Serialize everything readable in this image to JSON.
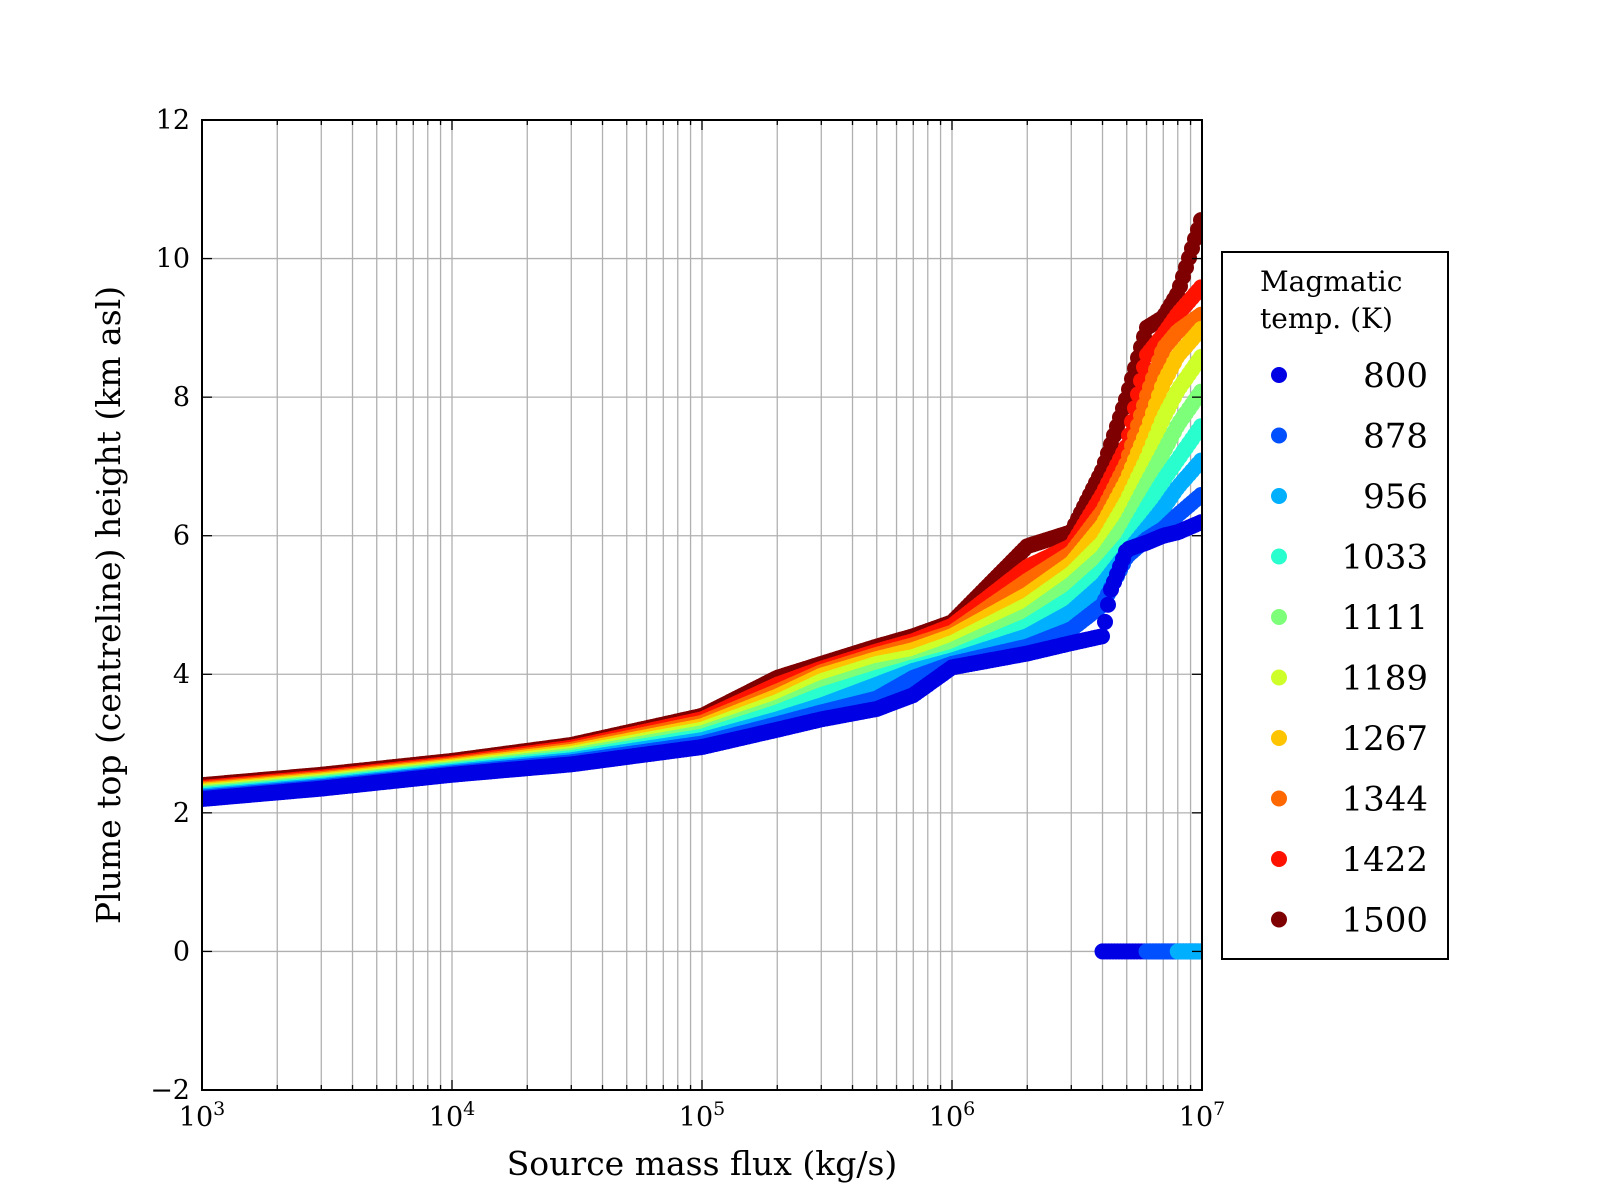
{
  "chart_data": {
    "type": "scatter",
    "title": "",
    "xlabel": "Source mass flux (kg/s)",
    "ylabel": "Plume top (centreline) height (km asl)",
    "xscale": "log",
    "xlim": [
      1000,
      10000000
    ],
    "ylim": [
      -2,
      12
    ],
    "grid": true,
    "x_tick_labels": [
      {
        "value": 1000,
        "base": "10",
        "exp": "3"
      },
      {
        "value": 10000,
        "base": "10",
        "exp": "4"
      },
      {
        "value": 100000,
        "base": "10",
        "exp": "5"
      },
      {
        "value": 1000000,
        "base": "10",
        "exp": "6"
      },
      {
        "value": 10000000,
        "base": "10",
        "exp": "7"
      }
    ],
    "y_tick_labels": [
      {
        "value": -2,
        "label": "−2"
      },
      {
        "value": 0,
        "label": "0"
      },
      {
        "value": 2,
        "label": "2"
      },
      {
        "value": 4,
        "label": "4"
      },
      {
        "value": 6,
        "label": "6"
      },
      {
        "value": 8,
        "label": "8"
      },
      {
        "value": 10,
        "label": "10"
      },
      {
        "value": 12,
        "label": "12"
      }
    ],
    "legend": {
      "title_lines": [
        "Magmatic",
        "temp. (K)"
      ],
      "placement": "outside right"
    },
    "series": [
      {
        "name": "800",
        "color": "#0000e5",
        "points": [
          [
            1000,
            2.2
          ],
          [
            3000,
            2.35
          ],
          [
            10000,
            2.55
          ],
          [
            30000,
            2.7
          ],
          [
            100000,
            2.95
          ],
          [
            200000,
            3.2
          ],
          [
            300000,
            3.35
          ],
          [
            500000,
            3.5
          ],
          [
            700000,
            3.7
          ],
          [
            1000000,
            4.1
          ],
          [
            2000000,
            4.3
          ],
          [
            3000000,
            4.45
          ],
          [
            4000000,
            4.55
          ],
          [
            4300000,
            5.2
          ],
          [
            5000000,
            5.8
          ],
          [
            6000000,
            5.9
          ],
          [
            7000000,
            6.0
          ],
          [
            8000000,
            6.05
          ],
          [
            10000000,
            6.2
          ]
        ]
      },
      {
        "name": "878",
        "color": "#0050ff",
        "points": [
          [
            1000,
            2.22
          ],
          [
            3000,
            2.37
          ],
          [
            10000,
            2.57
          ],
          [
            30000,
            2.73
          ],
          [
            100000,
            3.0
          ],
          [
            200000,
            3.28
          ],
          [
            300000,
            3.45
          ],
          [
            500000,
            3.65
          ],
          [
            700000,
            3.95
          ],
          [
            1000000,
            4.15
          ],
          [
            2000000,
            4.4
          ],
          [
            3000000,
            4.65
          ],
          [
            4000000,
            5.0
          ],
          [
            5000000,
            5.7
          ],
          [
            6000000,
            5.95
          ],
          [
            7000000,
            6.1
          ],
          [
            8000000,
            6.3
          ],
          [
            10000000,
            6.6
          ]
        ]
      },
      {
        "name": "956",
        "color": "#00b0ff",
        "points": [
          [
            1000,
            2.24
          ],
          [
            3000,
            2.39
          ],
          [
            10000,
            2.59
          ],
          [
            30000,
            2.76
          ],
          [
            100000,
            3.05
          ],
          [
            200000,
            3.35
          ],
          [
            300000,
            3.55
          ],
          [
            500000,
            3.85
          ],
          [
            700000,
            4.05
          ],
          [
            1000000,
            4.2
          ],
          [
            2000000,
            4.55
          ],
          [
            3000000,
            4.9
          ],
          [
            4000000,
            5.3
          ],
          [
            5000000,
            5.75
          ],
          [
            6000000,
            6.1
          ],
          [
            7000000,
            6.4
          ],
          [
            8000000,
            6.7
          ],
          [
            10000000,
            7.1
          ]
        ]
      },
      {
        "name": "1033",
        "color": "#29ffce",
        "points": [
          [
            1000,
            2.26
          ],
          [
            3000,
            2.41
          ],
          [
            10000,
            2.61
          ],
          [
            30000,
            2.79
          ],
          [
            100000,
            3.1
          ],
          [
            200000,
            3.45
          ],
          [
            300000,
            3.7
          ],
          [
            500000,
            3.95
          ],
          [
            700000,
            4.1
          ],
          [
            1000000,
            4.25
          ],
          [
            2000000,
            4.7
          ],
          [
            3000000,
            5.1
          ],
          [
            4000000,
            5.5
          ],
          [
            5000000,
            5.9
          ],
          [
            6000000,
            6.4
          ],
          [
            7000000,
            6.8
          ],
          [
            8000000,
            7.1
          ],
          [
            10000000,
            7.6
          ]
        ]
      },
      {
        "name": "1111",
        "color": "#7dff7a",
        "points": [
          [
            1000,
            2.28
          ],
          [
            3000,
            2.43
          ],
          [
            10000,
            2.63
          ],
          [
            30000,
            2.82
          ],
          [
            100000,
            3.15
          ],
          [
            200000,
            3.52
          ],
          [
            300000,
            3.8
          ],
          [
            500000,
            4.05
          ],
          [
            700000,
            4.15
          ],
          [
            1000000,
            4.35
          ],
          [
            2000000,
            4.85
          ],
          [
            3000000,
            5.3
          ],
          [
            4000000,
            5.7
          ],
          [
            5000000,
            6.2
          ],
          [
            6000000,
            6.75
          ],
          [
            7000000,
            7.2
          ],
          [
            8000000,
            7.6
          ],
          [
            10000000,
            8.1
          ]
        ]
      },
      {
        "name": "1189",
        "color": "#ceff29",
        "points": [
          [
            1000,
            2.3
          ],
          [
            3000,
            2.45
          ],
          [
            10000,
            2.65
          ],
          [
            30000,
            2.85
          ],
          [
            100000,
            3.2
          ],
          [
            200000,
            3.6
          ],
          [
            300000,
            3.9
          ],
          [
            500000,
            4.15
          ],
          [
            700000,
            4.25
          ],
          [
            1000000,
            4.45
          ],
          [
            2000000,
            5.0
          ],
          [
            3000000,
            5.45
          ],
          [
            4000000,
            5.9
          ],
          [
            5000000,
            6.5
          ],
          [
            6000000,
            7.1
          ],
          [
            7000000,
            7.7
          ],
          [
            8000000,
            8.1
          ],
          [
            10000000,
            8.6
          ]
        ]
      },
      {
        "name": "1267",
        "color": "#ffc400",
        "points": [
          [
            1000,
            2.32
          ],
          [
            3000,
            2.47
          ],
          [
            10000,
            2.67
          ],
          [
            30000,
            2.88
          ],
          [
            100000,
            3.25
          ],
          [
            200000,
            3.68
          ],
          [
            300000,
            3.98
          ],
          [
            500000,
            4.22
          ],
          [
            700000,
            4.35
          ],
          [
            1000000,
            4.55
          ],
          [
            2000000,
            5.15
          ],
          [
            3000000,
            5.6
          ],
          [
            4000000,
            6.15
          ],
          [
            5000000,
            6.8
          ],
          [
            6000000,
            7.5
          ],
          [
            7000000,
            8.2
          ],
          [
            8000000,
            8.6
          ],
          [
            10000000,
            9.0
          ]
        ]
      },
      {
        "name": "1344",
        "color": "#ff6800",
        "points": [
          [
            1000,
            2.34
          ],
          [
            3000,
            2.49
          ],
          [
            10000,
            2.69
          ],
          [
            30000,
            2.91
          ],
          [
            100000,
            3.3
          ],
          [
            200000,
            3.75
          ],
          [
            300000,
            4.03
          ],
          [
            500000,
            4.28
          ],
          [
            700000,
            4.42
          ],
          [
            1000000,
            4.6
          ],
          [
            2000000,
            5.35
          ],
          [
            3000000,
            5.75
          ],
          [
            4000000,
            6.35
          ],
          [
            5000000,
            7.05
          ],
          [
            6000000,
            8.0
          ],
          [
            7000000,
            8.7
          ],
          [
            8000000,
            8.95
          ],
          [
            10000000,
            9.2
          ]
        ]
      },
      {
        "name": "1422",
        "color": "#ff1300",
        "points": [
          [
            1000,
            2.36
          ],
          [
            3000,
            2.51
          ],
          [
            10000,
            2.71
          ],
          [
            30000,
            2.94
          ],
          [
            100000,
            3.35
          ],
          [
            200000,
            3.85
          ],
          [
            300000,
            4.08
          ],
          [
            500000,
            4.33
          ],
          [
            700000,
            4.48
          ],
          [
            1000000,
            4.7
          ],
          [
            2000000,
            5.55
          ],
          [
            3000000,
            5.85
          ],
          [
            4000000,
            6.6
          ],
          [
            5000000,
            7.3
          ],
          [
            6000000,
            8.6
          ],
          [
            7000000,
            8.9
          ],
          [
            8000000,
            9.2
          ],
          [
            10000000,
            9.6
          ]
        ]
      },
      {
        "name": "1500",
        "color": "#7f0000",
        "points": [
          [
            1000,
            2.4
          ],
          [
            3000,
            2.55
          ],
          [
            10000,
            2.75
          ],
          [
            30000,
            2.98
          ],
          [
            100000,
            3.4
          ],
          [
            200000,
            3.95
          ],
          [
            300000,
            4.15
          ],
          [
            500000,
            4.4
          ],
          [
            700000,
            4.55
          ],
          [
            1000000,
            4.75
          ],
          [
            2000000,
            5.85
          ],
          [
            3000000,
            6.05
          ],
          [
            4000000,
            6.95
          ],
          [
            5000000,
            8.0
          ],
          [
            6000000,
            9.0
          ],
          [
            7000000,
            9.15
          ],
          [
            8000000,
            9.5
          ],
          [
            10000000,
            10.6
          ]
        ]
      }
    ],
    "zero_height_points": [
      {
        "name": "800",
        "color": "#0000e5",
        "x_range": [
          4000000,
          10000000
        ],
        "y": 0
      },
      {
        "name": "878",
        "color": "#0050ff",
        "x_range": [
          6000000,
          10000000
        ],
        "y": 0
      },
      {
        "name": "956",
        "color": "#00b0ff",
        "x_range": [
          8000000,
          10000000
        ],
        "y": 0
      }
    ]
  }
}
